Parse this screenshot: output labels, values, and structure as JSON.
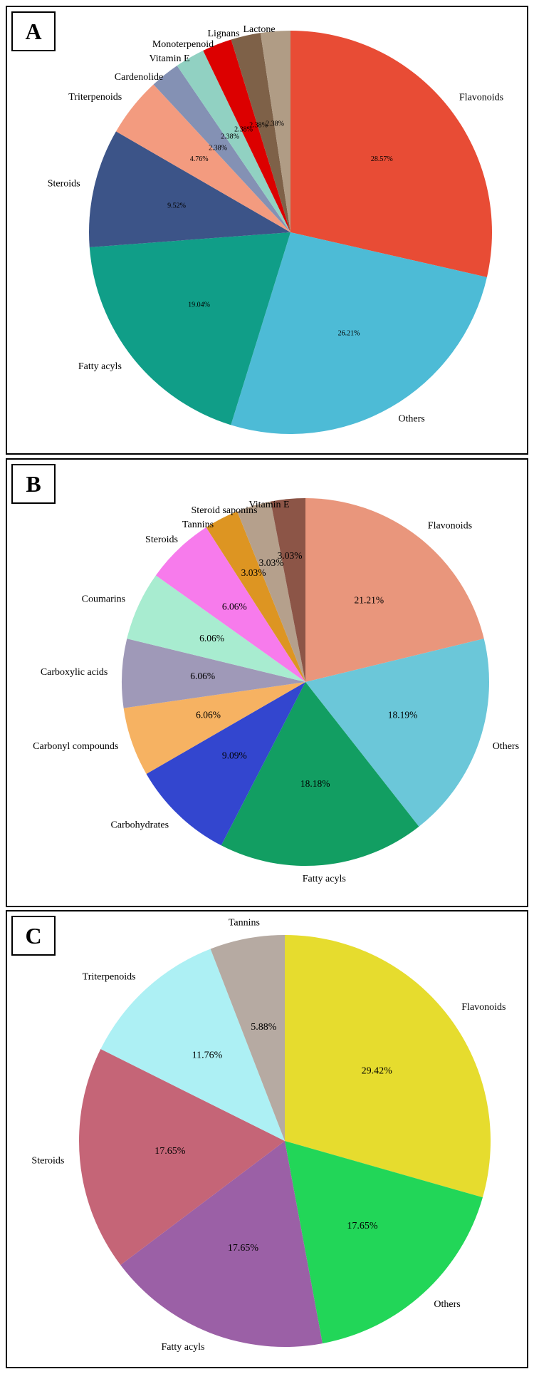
{
  "chart_data": [
    {
      "panel": "A",
      "type": "pie",
      "start_angle_deg": 90,
      "direction": "clockwise",
      "title": "",
      "slices": [
        {
          "label": "Flavonoids",
          "pct_text": "28.57%",
          "value": 28.57,
          "color": "#e84c35"
        },
        {
          "label": "Others",
          "pct_text": "26.21%",
          "value": 26.21,
          "color": "#4dbbd6"
        },
        {
          "label": "Fatty acyls",
          "pct_text": "19.04%",
          "value": 19.04,
          "color": "#109e88"
        },
        {
          "label": "Steroids",
          "pct_text": "9.52%",
          "value": 9.52,
          "color": "#3c5488"
        },
        {
          "label": "Triterpenoids",
          "pct_text": "4.76%",
          "value": 4.76,
          "color": "#f39b7f"
        },
        {
          "label": "Cardenolide",
          "pct_text": "2.38%",
          "value": 2.38,
          "color": "#8491b4"
        },
        {
          "label": "Vitamin E",
          "pct_text": "2.38%",
          "value": 2.38,
          "color": "#91d1c2"
        },
        {
          "label": "Monoterpenoid",
          "pct_text": "2.38%",
          "value": 2.38,
          "color": "#dc0000"
        },
        {
          "label": "Lignans",
          "pct_text": "2.38%",
          "value": 2.38,
          "color": "#7e6148"
        },
        {
          "label": "Lactone",
          "pct_text": "2.38%",
          "value": 2.38,
          "color": "#b09c85"
        }
      ]
    },
    {
      "panel": "B",
      "type": "pie",
      "start_angle_deg": 90,
      "direction": "clockwise",
      "title": "",
      "slices": [
        {
          "label": "Flavonoids",
          "pct_text": "21.21%",
          "value": 21.21,
          "color": "#e9967c"
        },
        {
          "label": "Others",
          "pct_text": "18.19%",
          "value": 18.19,
          "color": "#6bc7d9"
        },
        {
          "label": "Fatty acyls",
          "pct_text": "18.18%",
          "value": 18.18,
          "color": "#129e62"
        },
        {
          "label": "Carbohydrates",
          "pct_text": "9.09%",
          "value": 9.09,
          "color": "#3346cf"
        },
        {
          "label": "Carbonyl compounds",
          "pct_text": "6.06%",
          "value": 6.06,
          "color": "#f6b262"
        },
        {
          "label": "Carboxylic acids",
          "pct_text": "6.06%",
          "value": 6.06,
          "color": "#9f99b8"
        },
        {
          "label": "Coumarins",
          "pct_text": "6.06%",
          "value": 6.06,
          "color": "#a8ecd0"
        },
        {
          "label": "Steroids",
          "pct_text": "6.06%",
          "value": 6.06,
          "color": "#f77bec"
        },
        {
          "label": "Tannins",
          "pct_text": "3.03%",
          "value": 3.03,
          "color": "#dd9522"
        },
        {
          "label": "Steroid saponins",
          "pct_text": "3.03%",
          "value": 3.03,
          "color": "#b5a08c"
        },
        {
          "label": "Vitamin E",
          "pct_text": "3.03%",
          "value": 3.03,
          "color": "#8c5547"
        }
      ]
    },
    {
      "panel": "C",
      "type": "pie",
      "start_angle_deg": 90,
      "direction": "clockwise",
      "title": "",
      "slices": [
        {
          "label": "Flavonoids",
          "pct_text": "29.42%",
          "value": 29.42,
          "color": "#e6dc2e"
        },
        {
          "label": "Others",
          "pct_text": "17.65%",
          "value": 17.65,
          "color": "#22d658"
        },
        {
          "label": "Fatty acyls",
          "pct_text": "17.65%",
          "value": 17.65,
          "color": "#9b60a6"
        },
        {
          "label": "Steroids",
          "pct_text": "17.65%",
          "value": 17.65,
          "color": "#c56577"
        },
        {
          "label": "Triterpenoids",
          "pct_text": "11.76%",
          "value": 11.76,
          "color": "#adf0f4"
        },
        {
          "label": "Tannins",
          "pct_text": "5.88%",
          "value": 5.88,
          "color": "#b6aaa2"
        }
      ]
    }
  ]
}
